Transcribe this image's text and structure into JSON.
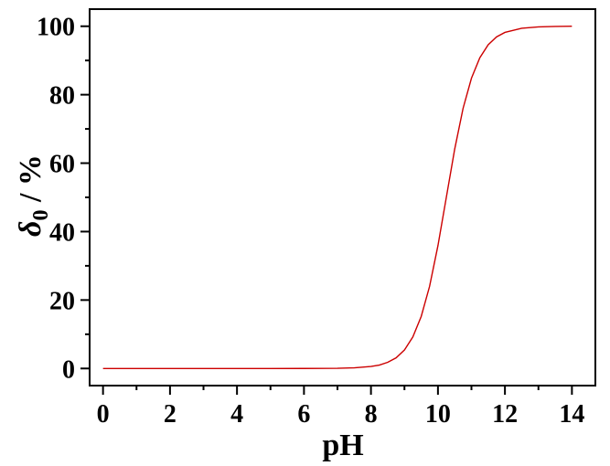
{
  "chart_data": {
    "type": "line",
    "xlabel": "pH",
    "ylabel": {
      "symbol": "δ",
      "subscript": "0",
      "suffix": " / %"
    },
    "xlim": [
      -0.4,
      14.7
    ],
    "ylim": [
      -5,
      105
    ],
    "xticks": [
      0,
      2,
      4,
      6,
      8,
      10,
      12,
      14
    ],
    "yticks": [
      0,
      20,
      40,
      60,
      80,
      100
    ],
    "grid": false,
    "legend": "none",
    "series": [
      {
        "color": "#cc0000",
        "x": [
          0,
          1,
          2,
          3,
          4,
          5,
          6,
          6.5,
          7,
          7.5,
          8,
          8.25,
          8.5,
          8.75,
          9,
          9.25,
          9.5,
          9.75,
          10,
          10.25,
          10.5,
          10.75,
          11,
          11.25,
          11.5,
          11.75,
          12,
          12.5,
          13,
          13.5,
          14
        ],
        "y": [
          0,
          0,
          0,
          0,
          0,
          0,
          0.01,
          0.03,
          0.06,
          0.2,
          0.6,
          1.0,
          1.8,
          3.1,
          5.4,
          9.2,
          15.2,
          24.0,
          35.9,
          50.0,
          64.1,
          76.0,
          84.8,
          90.8,
          94.6,
          96.9,
          98.2,
          99.4,
          99.8,
          99.94,
          100
        ]
      }
    ]
  }
}
